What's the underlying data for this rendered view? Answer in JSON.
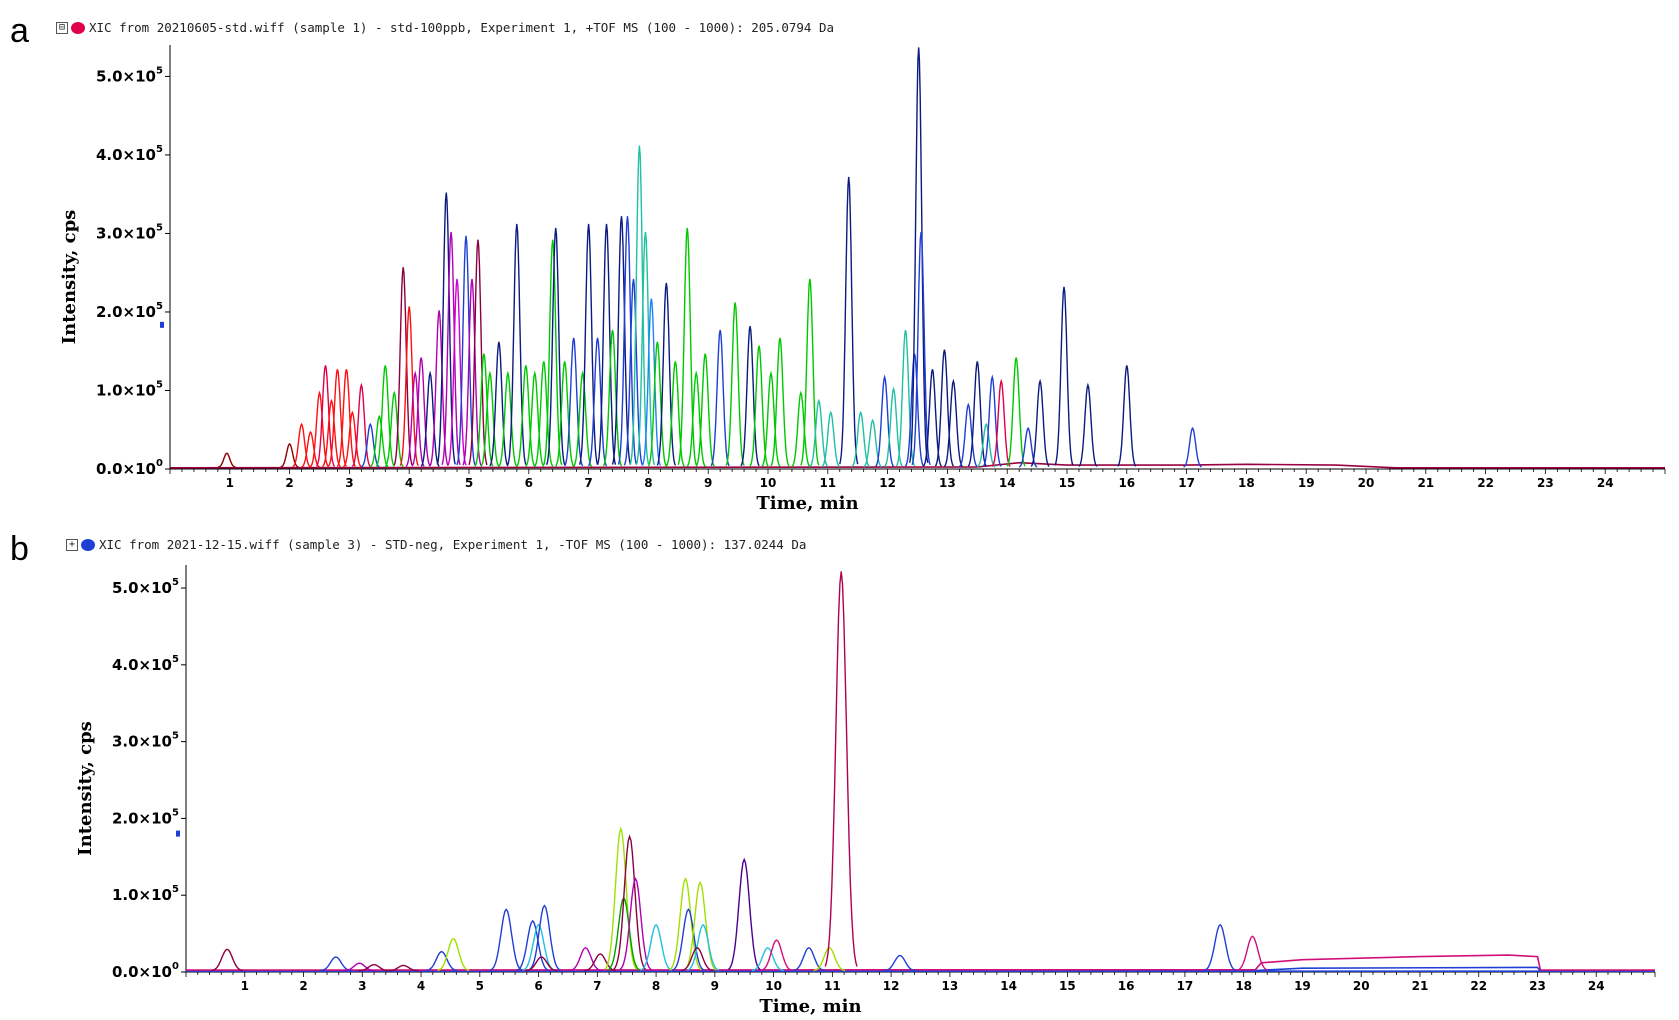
{
  "panels": [
    {
      "letter": "a",
      "expander": "⊟",
      "header_text": "XIC from 20210605-std.wiff (sample 1) - std-100ppb, Experiment 1, +TOF MS (100 - 1000): 205.0794 Da",
      "header_dot_color": "#e0004a"
    },
    {
      "letter": "b",
      "expander": "+",
      "header_text": "XIC from 2021-12-15.wiff (sample 3) - STD-neg, Experiment 1, -TOF MS (100 - 1000): 137.0244 Da",
      "header_dot_color": "#1f3fd4"
    }
  ],
  "chart_data": [
    {
      "type": "line",
      "xlabel": "Time, min",
      "ylabel": "Intensity, cps",
      "xlim": [
        0,
        25
      ],
      "ylim": [
        0,
        540000
      ],
      "x_ticks": [
        1,
        2,
        3,
        4,
        5,
        6,
        7,
        8,
        9,
        10,
        11,
        12,
        13,
        14,
        15,
        16,
        17,
        18,
        19,
        20,
        21,
        22,
        23,
        24
      ],
      "y_ticks": [
        {
          "value": 0,
          "label": "0.0×10",
          "exp": "0"
        },
        {
          "value": 100000,
          "label": "1.0×10",
          "exp": "5"
        },
        {
          "value": 200000,
          "label": "2.0×10",
          "exp": "5"
        },
        {
          "value": 300000,
          "label": "3.0×10",
          "exp": "5"
        },
        {
          "value": 400000,
          "label": "4.0×10",
          "exp": "5"
        },
        {
          "value": 500000,
          "label": "5.0×10",
          "exp": "5"
        }
      ],
      "baseline_color": "#9a0040",
      "baseline_series": [
        {
          "color": "#9a0040",
          "points": [
            [
              0,
              1500
            ],
            [
              13.5,
              2500
            ],
            [
              14.2,
              8000
            ],
            [
              15,
              5000
            ],
            [
              17,
              5000
            ],
            [
              18,
              6000
            ],
            [
              19.5,
              5000
            ],
            [
              20.5,
              1500
            ],
            [
              25,
              1500
            ]
          ]
        }
      ],
      "peaks": [
        {
          "t": 0.95,
          "h": 18000,
          "c": "#8b0000"
        },
        {
          "t": 2.0,
          "h": 30000,
          "c": "#8b0000"
        },
        {
          "t": 2.2,
          "h": 55000,
          "c": "#ff1010"
        },
        {
          "t": 2.35,
          "h": 45000,
          "c": "#ff1010"
        },
        {
          "t": 2.5,
          "h": 95000,
          "c": "#ff1010"
        },
        {
          "t": 2.6,
          "h": 130000,
          "c": "#e0004a"
        },
        {
          "t": 2.7,
          "h": 85000,
          "c": "#ff1010"
        },
        {
          "t": 2.8,
          "h": 125000,
          "c": "#ff1010"
        },
        {
          "t": 2.95,
          "h": 125000,
          "c": "#ff1010"
        },
        {
          "t": 3.05,
          "h": 70000,
          "c": "#ff1010"
        },
        {
          "t": 3.2,
          "h": 105000,
          "c": "#e0004a"
        },
        {
          "t": 3.35,
          "h": 55000,
          "c": "#1f3fd4"
        },
        {
          "t": 3.5,
          "h": 65000,
          "c": "#00c800"
        },
        {
          "t": 3.6,
          "h": 130000,
          "c": "#00c800"
        },
        {
          "t": 3.75,
          "h": 95000,
          "c": "#00c800"
        },
        {
          "t": 3.9,
          "h": 255000,
          "c": "#8b0040"
        },
        {
          "t": 4.0,
          "h": 205000,
          "c": "#ff1010"
        },
        {
          "t": 4.1,
          "h": 120000,
          "c": "#b000b0"
        },
        {
          "t": 4.2,
          "h": 140000,
          "c": "#b000b0"
        },
        {
          "t": 4.35,
          "h": 120000,
          "c": "#0a1a80"
        },
        {
          "t": 4.5,
          "h": 200000,
          "c": "#b000b0"
        },
        {
          "t": 4.62,
          "h": 350000,
          "c": "#0a1a80"
        },
        {
          "t": 4.7,
          "h": 300000,
          "c": "#b000b0"
        },
        {
          "t": 4.8,
          "h": 240000,
          "c": "#d000d0"
        },
        {
          "t": 4.95,
          "h": 295000,
          "c": "#1f3fd4"
        },
        {
          "t": 5.05,
          "h": 240000,
          "c": "#b000b0"
        },
        {
          "t": 5.15,
          "h": 290000,
          "c": "#8b0040"
        },
        {
          "t": 5.25,
          "h": 145000,
          "c": "#00c800"
        },
        {
          "t": 5.35,
          "h": 120000,
          "c": "#00c800"
        },
        {
          "t": 5.5,
          "h": 160000,
          "c": "#0a1a80"
        },
        {
          "t": 5.65,
          "h": 120000,
          "c": "#00c800"
        },
        {
          "t": 5.8,
          "h": 310000,
          "c": "#0a1a80"
        },
        {
          "t": 5.95,
          "h": 130000,
          "c": "#00c800"
        },
        {
          "t": 6.1,
          "h": 120000,
          "c": "#00c800"
        },
        {
          "t": 6.25,
          "h": 135000,
          "c": "#00c800"
        },
        {
          "t": 6.4,
          "h": 290000,
          "c": "#00c800"
        },
        {
          "t": 6.45,
          "h": 305000,
          "c": "#0a1a80"
        },
        {
          "t": 6.6,
          "h": 135000,
          "c": "#00c800"
        },
        {
          "t": 6.75,
          "h": 165000,
          "c": "#1f3fd4"
        },
        {
          "t": 6.9,
          "h": 120000,
          "c": "#00c800"
        },
        {
          "t": 7.0,
          "h": 310000,
          "c": "#0a1a80"
        },
        {
          "t": 7.15,
          "h": 165000,
          "c": "#1f3fd4"
        },
        {
          "t": 7.3,
          "h": 310000,
          "c": "#0a1a80"
        },
        {
          "t": 7.4,
          "h": 175000,
          "c": "#00c800"
        },
        {
          "t": 7.55,
          "h": 320000,
          "c": "#0a1a80"
        },
        {
          "t": 7.65,
          "h": 320000,
          "c": "#1f3fd4"
        },
        {
          "t": 7.75,
          "h": 240000,
          "c": "#1f3fd4"
        },
        {
          "t": 7.85,
          "h": 410000,
          "c": "#20c0a0"
        },
        {
          "t": 7.95,
          "h": 300000,
          "c": "#20c0a0"
        },
        {
          "t": 8.05,
          "h": 215000,
          "c": "#1f80ff"
        },
        {
          "t": 8.15,
          "h": 160000,
          "c": "#00c800"
        },
        {
          "t": 8.3,
          "h": 235000,
          "c": "#0a1a80"
        },
        {
          "t": 8.45,
          "h": 135000,
          "c": "#00c800"
        },
        {
          "t": 8.65,
          "h": 305000,
          "c": "#00c800"
        },
        {
          "t": 8.8,
          "h": 120000,
          "c": "#00c800"
        },
        {
          "t": 8.95,
          "h": 145000,
          "c": "#00c800"
        },
        {
          "t": 9.2,
          "h": 175000,
          "c": "#1f3fd4"
        },
        {
          "t": 9.45,
          "h": 210000,
          "c": "#00c800"
        },
        {
          "t": 9.7,
          "h": 180000,
          "c": "#0a1a80"
        },
        {
          "t": 9.85,
          "h": 155000,
          "c": "#00c800"
        },
        {
          "t": 10.05,
          "h": 120000,
          "c": "#00c800"
        },
        {
          "t": 10.2,
          "h": 165000,
          "c": "#00c800"
        },
        {
          "t": 10.55,
          "h": 95000,
          "c": "#00c800"
        },
        {
          "t": 10.7,
          "h": 240000,
          "c": "#00c800"
        },
        {
          "t": 10.85,
          "h": 85000,
          "c": "#20c0a0"
        },
        {
          "t": 11.05,
          "h": 70000,
          "c": "#20c0a0"
        },
        {
          "t": 11.35,
          "h": 370000,
          "c": "#0a1a80"
        },
        {
          "t": 11.55,
          "h": 70000,
          "c": "#20c0a0"
        },
        {
          "t": 11.75,
          "h": 60000,
          "c": "#20c0a0"
        },
        {
          "t": 11.95,
          "h": 115000,
          "c": "#1f3fd4"
        },
        {
          "t": 12.1,
          "h": 100000,
          "c": "#20c0a0"
        },
        {
          "t": 12.3,
          "h": 175000,
          "c": "#20c0a0"
        },
        {
          "t": 12.45,
          "h": 145000,
          "c": "#1f3fd4"
        },
        {
          "t": 12.52,
          "h": 535000,
          "c": "#0a1a80"
        },
        {
          "t": 12.56,
          "h": 300000,
          "c": "#1f3fd4"
        },
        {
          "t": 12.75,
          "h": 125000,
          "c": "#0a1a80"
        },
        {
          "t": 12.95,
          "h": 150000,
          "c": "#0a1a80"
        },
        {
          "t": 13.1,
          "h": 110000,
          "c": "#0a1a80"
        },
        {
          "t": 13.35,
          "h": 80000,
          "c": "#1f3fd4"
        },
        {
          "t": 13.5,
          "h": 135000,
          "c": "#0a1a80"
        },
        {
          "t": 13.65,
          "h": 55000,
          "c": "#20c0a0"
        },
        {
          "t": 13.75,
          "h": 115000,
          "c": "#1f3fd4"
        },
        {
          "t": 13.9,
          "h": 110000,
          "c": "#e0004a"
        },
        {
          "t": 14.15,
          "h": 140000,
          "c": "#00c800"
        },
        {
          "t": 14.35,
          "h": 50000,
          "c": "#1f3fd4"
        },
        {
          "t": 14.55,
          "h": 110000,
          "c": "#0a1a80"
        },
        {
          "t": 14.95,
          "h": 230000,
          "c": "#0a1a80"
        },
        {
          "t": 15.35,
          "h": 105000,
          "c": "#0a1a80"
        },
        {
          "t": 16.0,
          "h": 130000,
          "c": "#0a1a80"
        },
        {
          "t": 17.1,
          "h": 50000,
          "c": "#1f3fd4"
        }
      ]
    },
    {
      "type": "line",
      "xlabel": "Time, min",
      "ylabel": "Intensity, cps",
      "xlim": [
        0,
        25
      ],
      "ylim": [
        0,
        530000
      ],
      "x_ticks": [
        1,
        2,
        3,
        4,
        5,
        6,
        7,
        8,
        9,
        10,
        11,
        12,
        13,
        14,
        15,
        16,
        17,
        18,
        19,
        20,
        21,
        22,
        23,
        24
      ],
      "y_ticks": [
        {
          "value": 0,
          "label": "0.0×10",
          "exp": "0"
        },
        {
          "value": 100000,
          "label": "1.0×10",
          "exp": "5"
        },
        {
          "value": 200000,
          "label": "2.0×10",
          "exp": "5"
        },
        {
          "value": 300000,
          "label": "3.0×10",
          "exp": "5"
        },
        {
          "value": 400000,
          "label": "4.0×10",
          "exp": "5"
        },
        {
          "value": 500000,
          "label": "5.0×10",
          "exp": "5"
        }
      ],
      "baseline_color": "#1f3fd4",
      "baseline_series": [
        {
          "color": "#1f3fd4",
          "points": [
            [
              0,
              1000
            ],
            [
              25,
              1000
            ]
          ]
        },
        {
          "color": "#d0107a",
          "points": [
            [
              0,
              2500
            ],
            [
              18.2,
              3000
            ],
            [
              18.3,
              12000
            ],
            [
              19,
              16000
            ],
            [
              21,
              20000
            ],
            [
              22.5,
              22000
            ],
            [
              23,
              20000
            ],
            [
              23.05,
              2500
            ],
            [
              25,
              2500
            ]
          ]
        },
        {
          "color": "#1f3fd4",
          "points": [
            [
              18.2,
              2000
            ],
            [
              19,
              5000
            ],
            [
              23,
              6000
            ],
            [
              23.05,
              1000
            ]
          ]
        }
      ],
      "peaks": [
        {
          "t": 0.7,
          "h": 28000,
          "c": "#8b0040"
        },
        {
          "t": 2.55,
          "h": 18000,
          "c": "#1f3fd4"
        },
        {
          "t": 2.95,
          "h": 10000,
          "c": "#b000b0"
        },
        {
          "t": 3.2,
          "h": 8000,
          "c": "#8b0040"
        },
        {
          "t": 3.7,
          "h": 7000,
          "c": "#8b0040"
        },
        {
          "t": 4.35,
          "h": 25000,
          "c": "#1f3fd4"
        },
        {
          "t": 4.55,
          "h": 42000,
          "c": "#a0e000"
        },
        {
          "t": 5.45,
          "h": 80000,
          "c": "#1f3fd4"
        },
        {
          "t": 5.9,
          "h": 65000,
          "c": "#1f3fd4"
        },
        {
          "t": 6.0,
          "h": 60000,
          "c": "#20c0e0"
        },
        {
          "t": 6.1,
          "h": 85000,
          "c": "#1f3fd4"
        },
        {
          "t": 6.05,
          "h": 18000,
          "c": "#8b0040"
        },
        {
          "t": 6.8,
          "h": 30000,
          "c": "#b000b0"
        },
        {
          "t": 7.05,
          "h": 22000,
          "c": "#8b0040"
        },
        {
          "t": 7.4,
          "h": 185000,
          "c": "#a0e000"
        },
        {
          "t": 7.45,
          "h": 95000,
          "c": "#00a000"
        },
        {
          "t": 7.55,
          "h": 175000,
          "c": "#8b0040"
        },
        {
          "t": 7.65,
          "h": 120000,
          "c": "#b000b0"
        },
        {
          "t": 8.0,
          "h": 60000,
          "c": "#20c0e0"
        },
        {
          "t": 8.5,
          "h": 120000,
          "c": "#a0e000"
        },
        {
          "t": 8.55,
          "h": 80000,
          "c": "#1f3fd4"
        },
        {
          "t": 8.75,
          "h": 115000,
          "c": "#a0e000"
        },
        {
          "t": 8.8,
          "h": 60000,
          "c": "#20c0e0"
        },
        {
          "t": 8.7,
          "h": 30000,
          "c": "#8b0040"
        },
        {
          "t": 9.5,
          "h": 145000,
          "c": "#4a0090"
        },
        {
          "t": 9.9,
          "h": 30000,
          "c": "#20c0e0"
        },
        {
          "t": 10.05,
          "h": 40000,
          "c": "#d0107a"
        },
        {
          "t": 10.6,
          "h": 30000,
          "c": "#1f3fd4"
        },
        {
          "t": 10.95,
          "h": 30000,
          "c": "#a0e000"
        },
        {
          "t": 11.15,
          "h": 520000,
          "c": "#b00050"
        },
        {
          "t": 12.15,
          "h": 20000,
          "c": "#1f3fd4"
        },
        {
          "t": 17.6,
          "h": 60000,
          "c": "#1f3fd4"
        },
        {
          "t": 18.15,
          "h": 45000,
          "c": "#d0107a"
        }
      ]
    }
  ]
}
